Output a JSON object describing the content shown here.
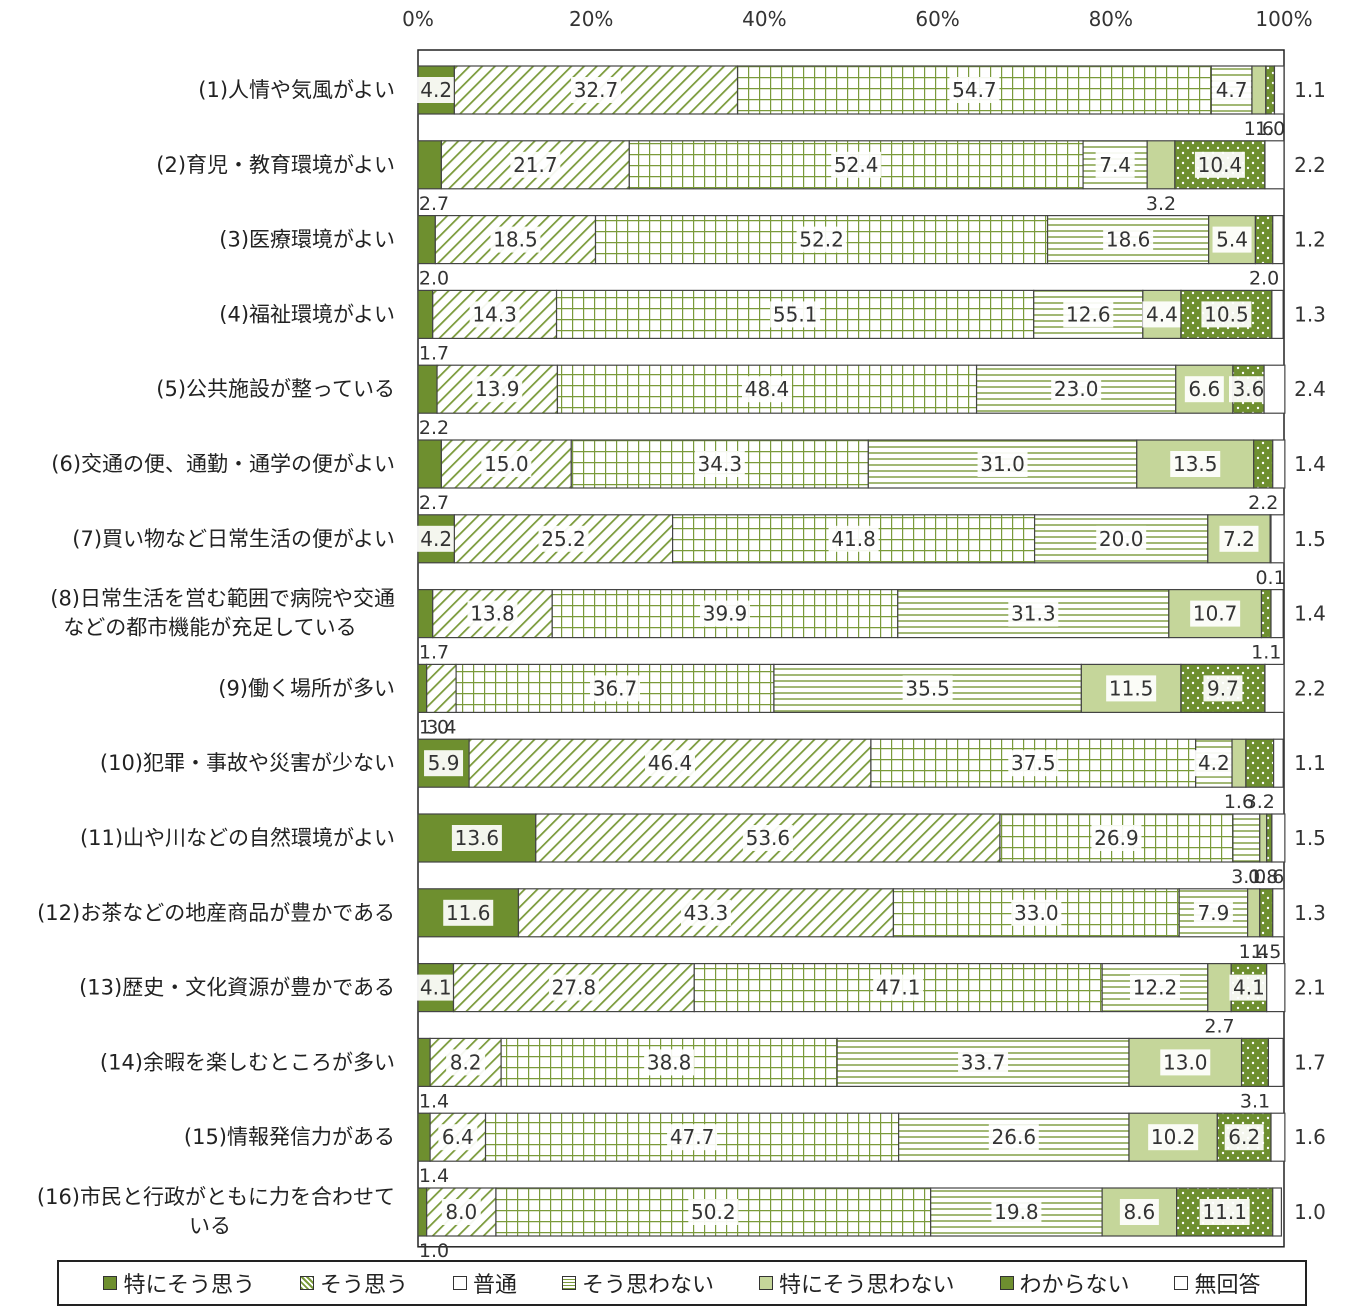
{
  "chart_data": {
    "type": "bar",
    "orientation": "horizontal",
    "stacked": true,
    "percent": true,
    "xlim": [
      0,
      100
    ],
    "x_ticks": [
      "0%",
      "20%",
      "40%",
      "60%",
      "80%",
      "100%"
    ],
    "legend_position": "bottom",
    "categories": [
      "(1)人情や気風がよい",
      "(2)育児・教育環境がよい",
      "(3)医療環境がよい",
      "(4)福祉環境がよい",
      "(5)公共施設が整っている",
      "(6)交通の便、通勤・通学の便がよい",
      "(7)買い物など日常生活の便がよい",
      "(8)日常生活を営む範囲で病院や交通などの都市機能が充足している",
      "(9)働く場所が多い",
      "(10)犯罪・事故や災害が少ない",
      "(11)山や川などの自然環境がよい",
      "(12)お茶などの地産商品が豊かである",
      "(13)歴史・文化資源が豊かである",
      "(14)余暇を楽しむところが多い",
      "(15)情報発信力がある",
      "(16)市民と行政がともに力を合わせている"
    ],
    "category_lines": [
      [
        "(1)人情や気風がよい"
      ],
      [
        "(2)育児・教育環境がよい"
      ],
      [
        "(3)医療環境がよい"
      ],
      [
        "(4)福祉環境がよい"
      ],
      [
        "(5)公共施設が整っている"
      ],
      [
        "(6)交通の便、通勤・通学の便がよい"
      ],
      [
        "(7)買い物など日常生活の便がよい"
      ],
      [
        "(8)日常生活を営む範囲で病院や交通",
        "などの都市機能が充足している"
      ],
      [
        "(9)働く場所が多い"
      ],
      [
        "(10)犯罪・事故や災害が少ない"
      ],
      [
        "(11)山や川などの自然環境がよい"
      ],
      [
        "(12)お茶などの地産商品が豊かである"
      ],
      [
        "(13)歴史・文化資源が豊かである"
      ],
      [
        "(14)余暇を楽しむところが多い"
      ],
      [
        "(15)情報発信力がある"
      ],
      [
        "(16)市民と行政がともに力を合わせて",
        "いる"
      ]
    ],
    "series": [
      {
        "name": "特にそう思う",
        "values": [
          4.2,
          2.7,
          2.0,
          1.7,
          2.2,
          2.7,
          4.2,
          1.7,
          1.0,
          5.9,
          13.6,
          11.6,
          4.1,
          1.4,
          1.4,
          1.0
        ]
      },
      {
        "name": "そう思う",
        "values": [
          32.7,
          21.7,
          18.5,
          14.3,
          13.9,
          15.0,
          25.2,
          13.8,
          3.4,
          46.4,
          53.6,
          43.3,
          27.8,
          8.2,
          6.4,
          8.0
        ]
      },
      {
        "name": "普通",
        "values": [
          54.7,
          52.4,
          52.2,
          55.1,
          48.4,
          34.3,
          41.8,
          39.9,
          36.7,
          37.5,
          26.9,
          33.0,
          47.1,
          38.8,
          47.7,
          50.2
        ]
      },
      {
        "name": "そう思わない",
        "values": [
          4.7,
          7.4,
          18.6,
          12.6,
          23.0,
          31.0,
          20.0,
          31.3,
          35.5,
          4.2,
          3.1,
          7.9,
          12.2,
          33.7,
          26.6,
          19.8
        ]
      },
      {
        "name": "特にそう思わない",
        "values": [
          1.6,
          3.2,
          5.4,
          4.4,
          6.6,
          13.5,
          7.2,
          10.7,
          11.5,
          1.6,
          0.8,
          1.4,
          2.7,
          13.0,
          10.2,
          8.6
        ]
      },
      {
        "name": "わからない",
        "values": [
          1.0,
          10.4,
          2.0,
          10.5,
          3.6,
          2.2,
          0.1,
          1.1,
          9.7,
          3.2,
          0.6,
          1.5,
          4.1,
          3.1,
          6.2,
          11.1
        ]
      },
      {
        "name": "無回答",
        "values": [
          1.1,
          2.2,
          1.2,
          1.3,
          2.4,
          1.4,
          1.5,
          1.4,
          2.2,
          1.1,
          1.5,
          1.3,
          2.1,
          1.7,
          1.6,
          1.0
        ]
      }
    ],
    "colors": {
      "dark_green": "#6e8f2f",
      "pattern_green": "#7a9a3a",
      "light_green": "#c5d69a",
      "label_box": "#ffffff",
      "text": "#333333"
    }
  }
}
